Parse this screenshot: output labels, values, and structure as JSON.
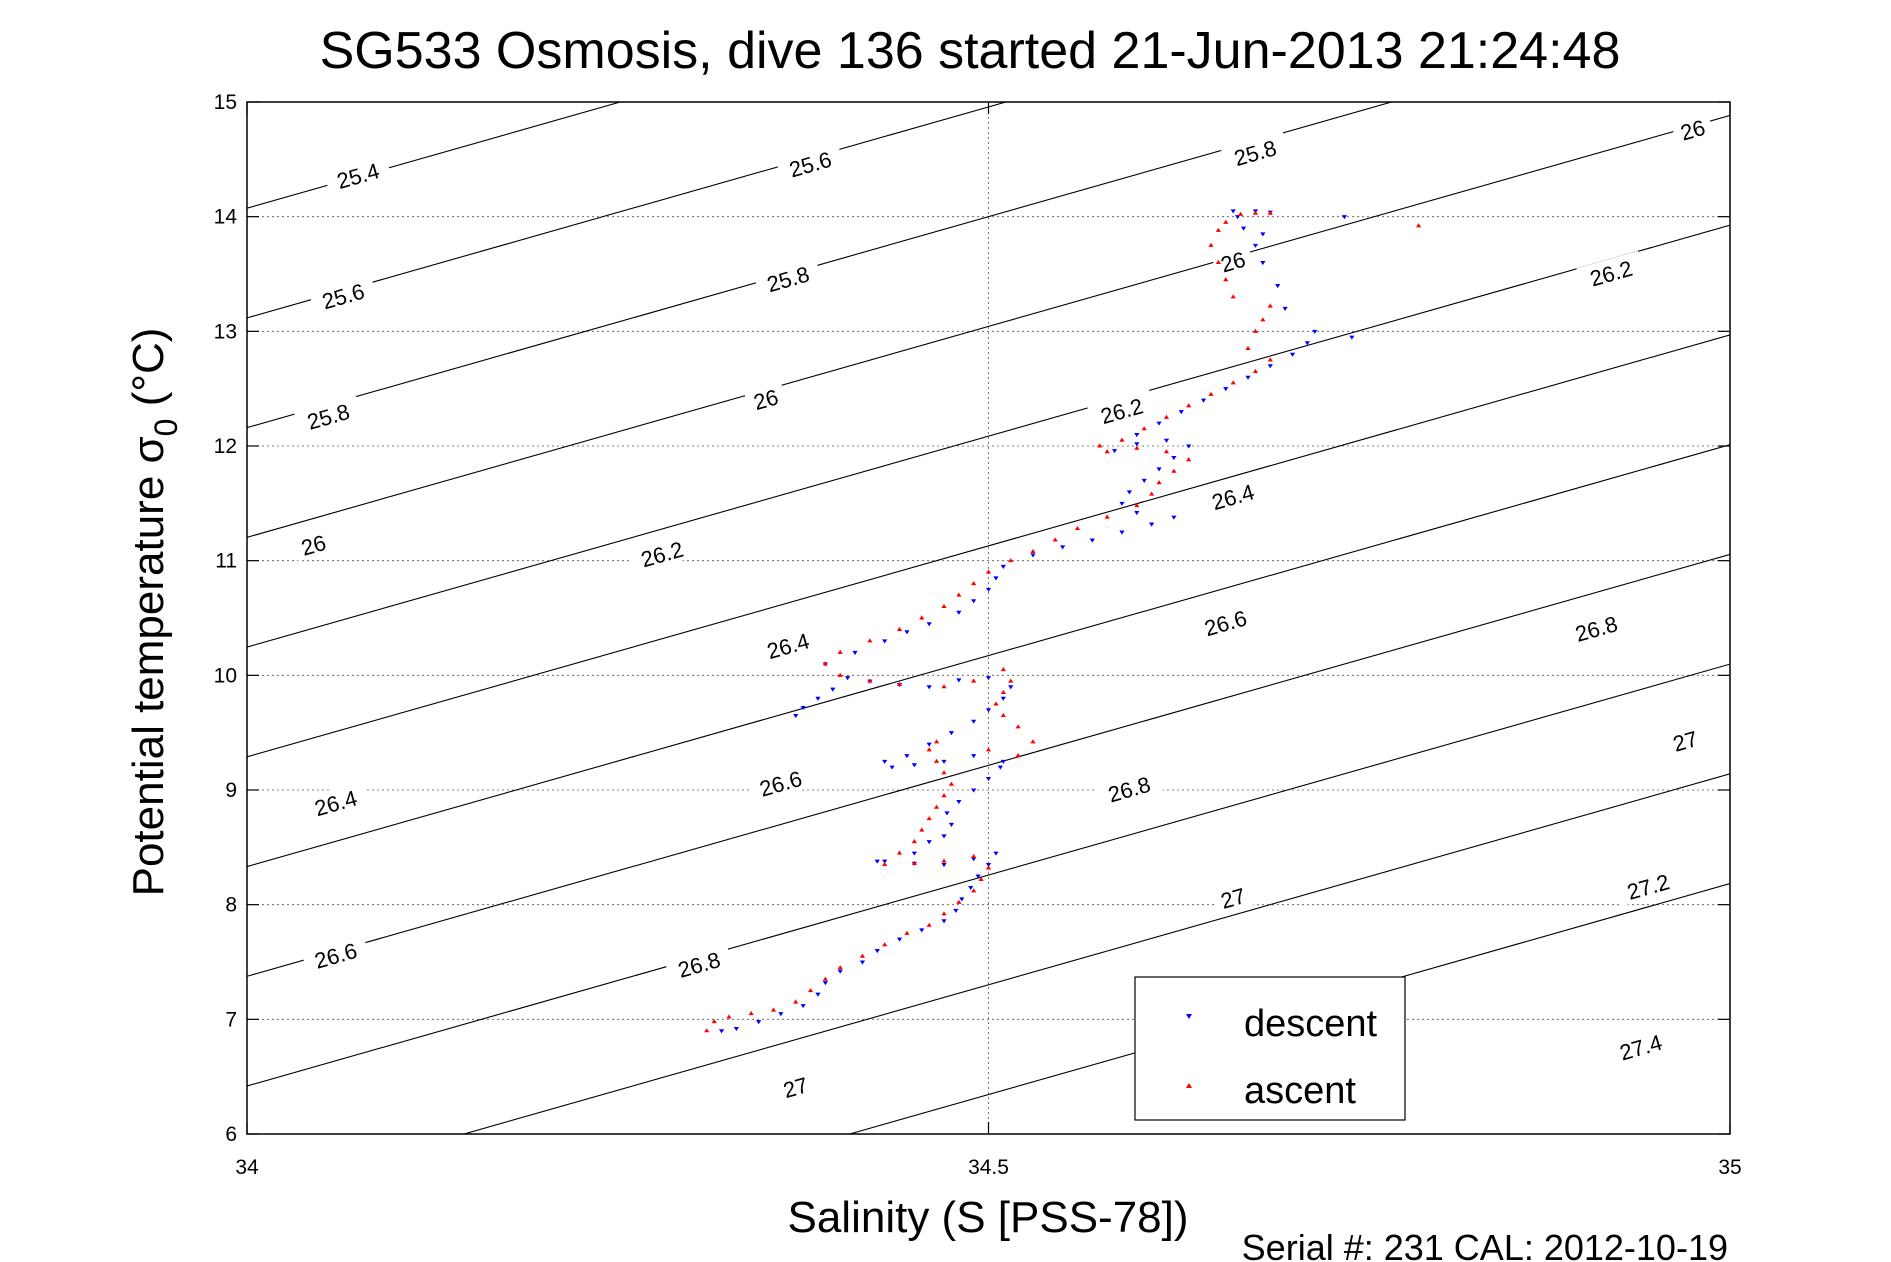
{
  "chart_data": {
    "type": "scatter",
    "title": "SG533 Osmosis, dive 136 started 21-Jun-2013 21:24:48",
    "xlabel": "Salinity (S [PSS-78])",
    "ylabel_main": "Potential temperature σ",
    "ylabel_sub": "0",
    "ylabel_unit": " (°C)",
    "footer": "Serial #: 231  CAL: 2012-10-19",
    "xlim": [
      34,
      35
    ],
    "ylim": [
      6,
      15
    ],
    "xticks": [
      34,
      34.5,
      35
    ],
    "xtick_labels": [
      "34",
      "34.5",
      "35"
    ],
    "yticks": [
      6,
      7,
      8,
      9,
      10,
      11,
      12,
      13,
      14,
      15
    ],
    "ytick_labels": [
      "6",
      "7",
      "8",
      "9",
      "10",
      "11",
      "12",
      "13",
      "14",
      "15"
    ],
    "grid": true,
    "legend": {
      "position": "bottom-right",
      "entries": [
        "descent",
        "ascent"
      ]
    },
    "isopycnal_values": [
      25.4,
      25.6,
      25.8,
      26.0,
      26.2,
      26.4,
      26.6,
      26.8,
      27.0,
      27.2,
      27.4
    ],
    "contour_labels": [
      {
        "text": "25.4",
        "x": 34.075,
        "y": 14.35
      },
      {
        "text": "25.6",
        "x": 34.065,
        "y": 13.3
      },
      {
        "text": "25.8",
        "x": 34.055,
        "y": 12.25
      },
      {
        "text": "26",
        "x": 34.045,
        "y": 11.13
      },
      {
        "text": "26.4",
        "x": 34.06,
        "y": 8.88
      },
      {
        "text": "26.6",
        "x": 34.06,
        "y": 7.55
      },
      {
        "text": "25.6",
        "x": 34.38,
        "y": 14.45
      },
      {
        "text": "25.8",
        "x": 34.365,
        "y": 13.45
      },
      {
        "text": "26",
        "x": 34.35,
        "y": 12.4
      },
      {
        "text": "26.2",
        "x": 34.28,
        "y": 11.05
      },
      {
        "text": "26.4",
        "x": 34.365,
        "y": 10.25
      },
      {
        "text": "26.6",
        "x": 34.36,
        "y": 9.05
      },
      {
        "text": "26.8",
        "x": 34.305,
        "y": 7.47
      },
      {
        "text": "27",
        "x": 34.37,
        "y": 6.4
      },
      {
        "text": "25.8",
        "x": 34.68,
        "y": 14.55
      },
      {
        "text": "26",
        "x": 34.665,
        "y": 13.6
      },
      {
        "text": "26.2",
        "x": 34.59,
        "y": 12.3
      },
      {
        "text": "26.4",
        "x": 34.665,
        "y": 11.55
      },
      {
        "text": "26.6",
        "x": 34.66,
        "y": 10.45
      },
      {
        "text": "26.8",
        "x": 34.595,
        "y": 9.0
      },
      {
        "text": "27",
        "x": 34.665,
        "y": 8.05
      },
      {
        "text": "26",
        "x": 34.975,
        "y": 14.75
      },
      {
        "text": "26.2",
        "x": 34.92,
        "y": 13.5
      },
      {
        "text": "26.8",
        "x": 34.91,
        "y": 10.4
      },
      {
        "text": "27",
        "x": 34.97,
        "y": 9.42
      },
      {
        "text": "27.2",
        "x": 34.945,
        "y": 8.15
      },
      {
        "text": "27.4",
        "x": 34.94,
        "y": 6.75
      }
    ],
    "series": [
      {
        "name": "descent",
        "color": "#0000ff",
        "marker": "triangle-down",
        "points": [
          [
            34.32,
            6.9
          ],
          [
            34.33,
            6.92
          ],
          [
            34.345,
            6.98
          ],
          [
            34.36,
            7.05
          ],
          [
            34.375,
            7.12
          ],
          [
            34.385,
            7.22
          ],
          [
            34.39,
            7.32
          ],
          [
            34.4,
            7.42
          ],
          [
            34.415,
            7.5
          ],
          [
            34.425,
            7.6
          ],
          [
            34.44,
            7.7
          ],
          [
            34.455,
            7.78
          ],
          [
            34.47,
            7.86
          ],
          [
            34.478,
            7.95
          ],
          [
            34.482,
            8.05
          ],
          [
            34.488,
            8.15
          ],
          [
            34.493,
            8.25
          ],
          [
            34.5,
            8.35
          ],
          [
            34.505,
            8.45
          ],
          [
            34.49,
            8.4
          ],
          [
            34.47,
            8.35
          ],
          [
            34.45,
            8.36
          ],
          [
            34.43,
            8.38
          ],
          [
            34.425,
            8.38
          ],
          [
            34.45,
            8.45
          ],
          [
            34.46,
            8.55
          ],
          [
            34.47,
            8.6
          ],
          [
            34.475,
            8.7
          ],
          [
            34.472,
            8.8
          ],
          [
            34.48,
            8.9
          ],
          [
            34.49,
            9.0
          ],
          [
            34.5,
            9.1
          ],
          [
            34.508,
            9.2
          ],
          [
            34.51,
            9.25
          ],
          [
            34.49,
            9.3
          ],
          [
            34.47,
            9.25
          ],
          [
            34.45,
            9.22
          ],
          [
            34.435,
            9.2
          ],
          [
            34.43,
            9.25
          ],
          [
            34.445,
            9.3
          ],
          [
            34.46,
            9.4
          ],
          [
            34.475,
            9.5
          ],
          [
            34.49,
            9.6
          ],
          [
            34.5,
            9.7
          ],
          [
            34.51,
            9.8
          ],
          [
            34.515,
            9.9
          ],
          [
            34.5,
            9.98
          ],
          [
            34.48,
            9.96
          ],
          [
            34.46,
            9.9
          ],
          [
            34.44,
            9.92
          ],
          [
            34.42,
            9.95
          ],
          [
            34.405,
            9.98
          ],
          [
            34.395,
            9.88
          ],
          [
            34.385,
            9.8
          ],
          [
            34.375,
            9.72
          ],
          [
            34.37,
            9.65
          ],
          [
            34.39,
            10.1
          ],
          [
            34.41,
            10.2
          ],
          [
            34.43,
            10.3
          ],
          [
            34.445,
            10.38
          ],
          [
            34.46,
            10.45
          ],
          [
            34.48,
            10.55
          ],
          [
            34.49,
            10.65
          ],
          [
            34.5,
            10.75
          ],
          [
            34.505,
            10.85
          ],
          [
            34.51,
            10.95
          ],
          [
            34.53,
            11.05
          ],
          [
            34.55,
            11.12
          ],
          [
            34.57,
            11.18
          ],
          [
            34.59,
            11.25
          ],
          [
            34.61,
            11.32
          ],
          [
            34.625,
            11.38
          ],
          [
            34.6,
            11.42
          ],
          [
            34.59,
            11.5
          ],
          [
            34.595,
            11.6
          ],
          [
            34.605,
            11.7
          ],
          [
            34.615,
            11.8
          ],
          [
            34.625,
            11.9
          ],
          [
            34.635,
            12.0
          ],
          [
            34.62,
            12.05
          ],
          [
            34.6,
            12.02
          ],
          [
            34.585,
            11.96
          ],
          [
            34.6,
            12.1
          ],
          [
            34.615,
            12.2
          ],
          [
            34.63,
            12.3
          ],
          [
            34.645,
            12.4
          ],
          [
            34.66,
            12.5
          ],
          [
            34.675,
            12.6
          ],
          [
            34.69,
            12.7
          ],
          [
            34.705,
            12.8
          ],
          [
            34.715,
            12.9
          ],
          [
            34.72,
            13.0
          ],
          [
            34.745,
            12.95
          ],
          [
            34.7,
            13.2
          ],
          [
            34.695,
            13.4
          ],
          [
            34.685,
            13.6
          ],
          [
            34.68,
            13.75
          ],
          [
            34.685,
            13.85
          ],
          [
            34.672,
            13.9
          ],
          [
            34.668,
            14.0
          ],
          [
            34.665,
            14.05
          ],
          [
            34.68,
            14.05
          ],
          [
            34.69,
            14.04
          ],
          [
            34.74,
            14.0
          ]
        ]
      },
      {
        "name": "ascent",
        "color": "#ff0000",
        "marker": "triangle-up",
        "points": [
          [
            34.31,
            6.9
          ],
          [
            34.315,
            6.98
          ],
          [
            34.325,
            7.02
          ],
          [
            34.34,
            7.05
          ],
          [
            34.355,
            7.08
          ],
          [
            34.37,
            7.15
          ],
          [
            34.38,
            7.25
          ],
          [
            34.39,
            7.35
          ],
          [
            34.4,
            7.45
          ],
          [
            34.415,
            7.55
          ],
          [
            34.43,
            7.65
          ],
          [
            34.445,
            7.75
          ],
          [
            34.46,
            7.82
          ],
          [
            34.47,
            7.92
          ],
          [
            34.48,
            8.02
          ],
          [
            34.49,
            8.12
          ],
          [
            34.495,
            8.22
          ],
          [
            34.5,
            8.32
          ],
          [
            34.49,
            8.42
          ],
          [
            34.47,
            8.38
          ],
          [
            34.45,
            8.36
          ],
          [
            34.43,
            8.35
          ],
          [
            34.44,
            8.45
          ],
          [
            34.45,
            8.55
          ],
          [
            34.455,
            8.65
          ],
          [
            34.46,
            8.75
          ],
          [
            34.465,
            8.85
          ],
          [
            34.47,
            8.95
          ],
          [
            34.475,
            9.05
          ],
          [
            34.47,
            9.15
          ],
          [
            34.465,
            9.25
          ],
          [
            34.46,
            9.35
          ],
          [
            34.465,
            9.42
          ],
          [
            34.5,
            9.35
          ],
          [
            34.52,
            9.3
          ],
          [
            34.53,
            9.42
          ],
          [
            34.52,
            9.55
          ],
          [
            34.51,
            9.65
          ],
          [
            34.505,
            9.75
          ],
          [
            34.51,
            9.85
          ],
          [
            34.515,
            9.95
          ],
          [
            34.51,
            10.05
          ],
          [
            34.49,
            9.95
          ],
          [
            34.47,
            9.9
          ],
          [
            34.44,
            9.92
          ],
          [
            34.42,
            9.95
          ],
          [
            34.4,
            10.0
          ],
          [
            34.39,
            10.1
          ],
          [
            34.4,
            10.2
          ],
          [
            34.42,
            10.3
          ],
          [
            34.44,
            10.4
          ],
          [
            34.455,
            10.5
          ],
          [
            34.47,
            10.6
          ],
          [
            34.48,
            10.7
          ],
          [
            34.49,
            10.8
          ],
          [
            34.5,
            10.9
          ],
          [
            34.515,
            11.0
          ],
          [
            34.53,
            11.08
          ],
          [
            34.545,
            11.18
          ],
          [
            34.56,
            11.28
          ],
          [
            34.58,
            11.38
          ],
          [
            34.6,
            11.48
          ],
          [
            34.61,
            11.58
          ],
          [
            34.615,
            11.68
          ],
          [
            34.625,
            11.78
          ],
          [
            34.635,
            11.88
          ],
          [
            34.62,
            11.95
          ],
          [
            34.6,
            11.98
          ],
          [
            34.58,
            11.95
          ],
          [
            34.575,
            12.0
          ],
          [
            34.59,
            12.05
          ],
          [
            34.605,
            12.15
          ],
          [
            34.62,
            12.25
          ],
          [
            34.635,
            12.35
          ],
          [
            34.65,
            12.45
          ],
          [
            34.665,
            12.55
          ],
          [
            34.68,
            12.65
          ],
          [
            34.69,
            12.75
          ],
          [
            34.675,
            12.85
          ],
          [
            34.68,
            13.0
          ],
          [
            34.685,
            13.1
          ],
          [
            34.69,
            13.22
          ],
          [
            34.665,
            13.3
          ],
          [
            34.66,
            13.45
          ],
          [
            34.655,
            13.6
          ],
          [
            34.65,
            13.75
          ],
          [
            34.655,
            13.88
          ],
          [
            34.66,
            13.95
          ],
          [
            34.67,
            14.02
          ],
          [
            34.68,
            14.03
          ],
          [
            34.69,
            14.03
          ],
          [
            34.79,
            13.92
          ]
        ]
      }
    ]
  }
}
